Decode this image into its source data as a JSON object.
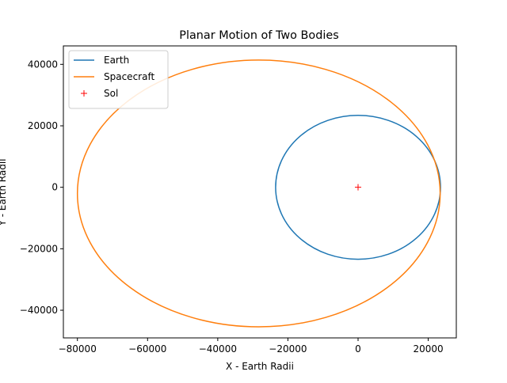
{
  "chart_data": {
    "type": "line",
    "title": "Planar Motion of Two Bodies",
    "xlabel": "X - Earth Radii",
    "ylabel": "Y - Earth Radii",
    "xlim": [
      -84000,
      28000
    ],
    "ylim": [
      -49000,
      46000
    ],
    "xticks": [
      -80000,
      -60000,
      -40000,
      -20000,
      0,
      20000
    ],
    "xtick_labels": [
      "−80000",
      "−60000",
      "−40000",
      "−20000",
      "0",
      "20000"
    ],
    "yticks": [
      -40000,
      -20000,
      0,
      20000,
      40000
    ],
    "ytick_labels": [
      "−40000",
      "−20000",
      "0",
      "20000",
      "40000"
    ],
    "grid": false,
    "legend_position": "top-left",
    "series": [
      {
        "name": "Earth",
        "kind": "orbit",
        "color": "#1f77b4",
        "center": [
          0,
          0
        ],
        "semi_axes": [
          23500,
          23400
        ],
        "extent": {
          "x": [
            -23500,
            23500
          ],
          "y": [
            -23400,
            23400
          ]
        }
      },
      {
        "name": "Spacecraft",
        "kind": "orbit",
        "color": "#ff7f0e",
        "center": [
          -28300,
          -2000
        ],
        "semi_axes": [
          51700,
          43400
        ],
        "extent": {
          "x": [
            -80000,
            23400
          ],
          "y": [
            -45400,
            41400
          ]
        }
      },
      {
        "name": "Sol",
        "kind": "marker",
        "marker": "+",
        "color": "#ff0000",
        "x": [
          0
        ],
        "y": [
          0
        ]
      }
    ]
  }
}
